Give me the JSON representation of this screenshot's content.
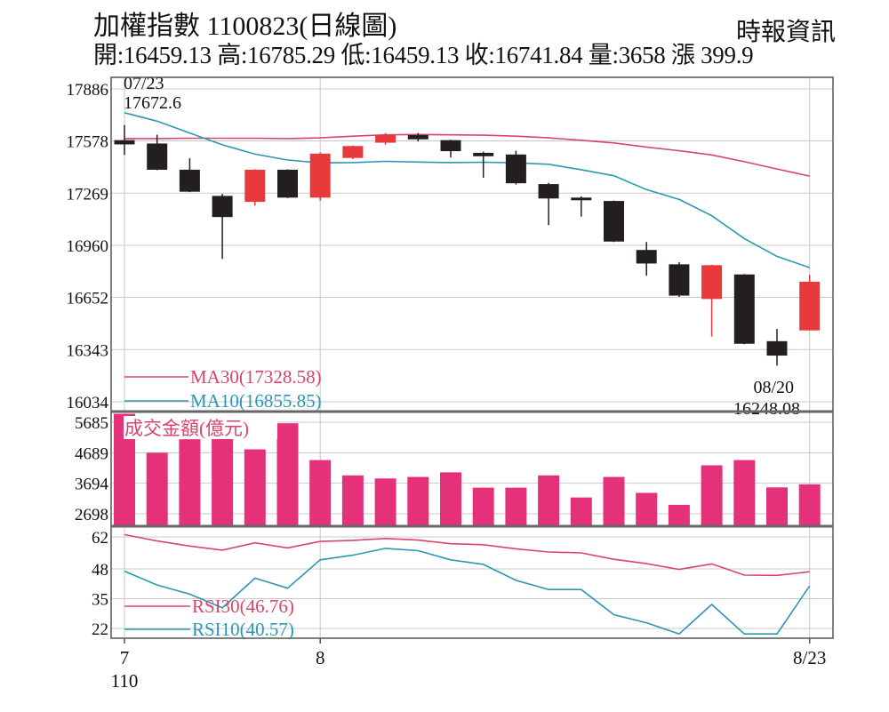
{
  "header": {
    "title": "加權指數 1100823(日線圖)",
    "source": "時報資訊",
    "stats": "開:16459.13 高:16785.29 低:16459.13 收:16741.84 量:3658 漲 399.9"
  },
  "chart_data": [
    {
      "type": "candlestick",
      "y_ticks": [
        "17886",
        "17578",
        "17269",
        "16960",
        "16652",
        "16343",
        "16034"
      ],
      "ylim": [
        16034,
        17886
      ],
      "candles": [
        {
          "open": 17580,
          "close": 17560,
          "high": 17672.6,
          "low": 17495
        },
        {
          "open": 17560,
          "close": 17410,
          "high": 17615,
          "low": 17405
        },
        {
          "open": 17405,
          "close": 17280,
          "high": 17475,
          "low": 17275
        },
        {
          "open": 17250,
          "close": 17130,
          "high": 17265,
          "low": 16880
        },
        {
          "open": 17220,
          "close": 17405,
          "high": 17410,
          "low": 17195
        },
        {
          "open": 17405,
          "close": 17245,
          "high": 17410,
          "low": 17240
        },
        {
          "open": 17245,
          "close": 17500,
          "high": 17510,
          "low": 17225
        },
        {
          "open": 17480,
          "close": 17545,
          "high": 17550,
          "low": 17470
        },
        {
          "open": 17570,
          "close": 17610,
          "high": 17625,
          "low": 17555
        },
        {
          "open": 17610,
          "close": 17590,
          "high": 17625,
          "low": 17575
        },
        {
          "open": 17580,
          "close": 17520,
          "high": 17585,
          "low": 17480
        },
        {
          "open": 17505,
          "close": 17490,
          "high": 17515,
          "low": 17360
        },
        {
          "open": 17495,
          "close": 17330,
          "high": 17520,
          "low": 17320
        },
        {
          "open": 17320,
          "close": 17240,
          "high": 17330,
          "low": 17080
        },
        {
          "open": 17240,
          "close": 17235,
          "high": 17250,
          "low": 17130
        },
        {
          "open": 17220,
          "close": 16985,
          "high": 17225,
          "low": 16980
        },
        {
          "open": 16930,
          "close": 16855,
          "high": 16980,
          "low": 16780
        },
        {
          "open": 16845,
          "close": 16665,
          "high": 16860,
          "low": 16655
        },
        {
          "open": 16645,
          "close": 16840,
          "high": 16845,
          "low": 16420
        },
        {
          "open": 16785,
          "close": 16380,
          "high": 16790,
          "low": 16375
        },
        {
          "open": 16390,
          "close": 16310,
          "high": 16465,
          "low": 16248.08
        },
        {
          "open": 16459.13,
          "close": 16741.84,
          "high": 16785.29,
          "low": 16459.13
        }
      ],
      "up_color": "#e8393b",
      "down_color": "#231f20",
      "ma30": [
        17592,
        17592,
        17594,
        17594,
        17594,
        17592,
        17596,
        17606,
        17614,
        17616,
        17614,
        17612,
        17606,
        17596,
        17582,
        17566,
        17542,
        17520,
        17495,
        17455,
        17412,
        17370
      ],
      "ma10": [
        17745,
        17695,
        17625,
        17555,
        17500,
        17465,
        17448,
        17450,
        17457,
        17453,
        17450,
        17452,
        17448,
        17440,
        17408,
        17372,
        17290,
        17232,
        17135,
        17000,
        16895,
        16828
      ],
      "annotations": [
        {
          "date": "07/23",
          "value": "17672.6"
        },
        {
          "date": "08/20",
          "value": "16248.08"
        }
      ],
      "legend": [
        {
          "label": "MA30(17328.58)",
          "color": "#d9446a"
        },
        {
          "label": "MA10(16855.85)",
          "color": "#2a97b5"
        }
      ]
    },
    {
      "type": "bar",
      "title": "成交金額(億元)",
      "y_ticks": [
        "5685",
        "4689",
        "3694",
        "2698"
      ],
      "ylim": [
        2698,
        5685
      ],
      "values": [
        5960,
        4690,
        5130,
        5210,
        4800,
        5650,
        4450,
        3950,
        3850,
        3900,
        4050,
        3550,
        3550,
        3950,
        3230,
        3900,
        3380,
        2990,
        4280,
        4450,
        3560,
        3658
      ],
      "color": "#e4317a"
    },
    {
      "type": "line",
      "y_ticks": [
        "62",
        "48",
        "35",
        "22"
      ],
      "ylim": [
        22,
        62
      ],
      "series": [
        {
          "name": "RSI30(46.76)",
          "color": "#d9446a",
          "values": [
            63,
            60.2,
            58,
            56.2,
            59.4,
            57.2,
            60,
            60.5,
            61.3,
            60.6,
            59,
            58.6,
            56.8,
            55.4,
            55,
            52.2,
            50.3,
            47.8,
            50.2,
            45.3,
            45.2,
            46.76
          ]
        },
        {
          "name": "RSI10(40.57)",
          "color": "#2a97b5",
          "values": [
            47,
            41,
            37,
            31,
            44,
            39.6,
            52,
            54,
            57,
            56,
            52,
            50,
            43,
            39,
            39,
            28,
            24.5,
            19.6,
            32.5,
            19.6,
            19.6,
            40.57
          ]
        }
      ]
    }
  ],
  "x_axis": {
    "ticks": [
      {
        "label": "7",
        "index": 0
      },
      {
        "label": "8",
        "index": 6
      },
      {
        "label": "8/23",
        "index": 21
      }
    ],
    "year_label": "110"
  }
}
